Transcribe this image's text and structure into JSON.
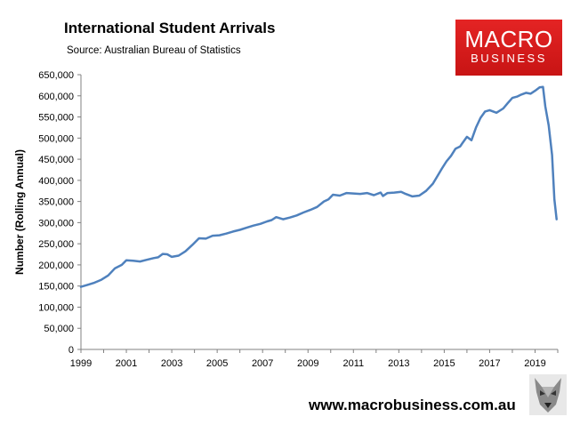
{
  "header": {
    "title": "International Student Arrivals",
    "subtitle": "Source: Australian Bureau of Statistics"
  },
  "logo": {
    "top": "MACRO",
    "bottom": "BUSINESS",
    "color": "#d11a1a"
  },
  "footer": {
    "url": "www.macrobusiness.com.au"
  },
  "chart_data": {
    "type": "line",
    "ylabel": "Number (Rolling Annual)",
    "xlabel": "",
    "xlim": [
      1999,
      2020
    ],
    "ylim": [
      0,
      650000
    ],
    "yticks": [
      0,
      50000,
      100000,
      150000,
      200000,
      250000,
      300000,
      350000,
      400000,
      450000,
      500000,
      550000,
      600000,
      650000
    ],
    "ytick_labels": [
      "0",
      "50,000",
      "100,000",
      "150,000",
      "200,000",
      "250,000",
      "300,000",
      "350,000",
      "400,000",
      "450,000",
      "500,000",
      "550,000",
      "600,000",
      "650,000"
    ],
    "xticks": [
      1999,
      2001,
      2003,
      2005,
      2007,
      2009,
      2011,
      2013,
      2015,
      2017,
      2019
    ],
    "xtick_labels": [
      "1999",
      "2001",
      "2003",
      "2005",
      "2007",
      "2009",
      "2011",
      "2013",
      "2015",
      "2017",
      "2019"
    ],
    "grid": false,
    "line_color": "#4f81bd",
    "series": [
      {
        "x": [
          1999.0,
          1999.3,
          1999.6,
          1999.9,
          2000.2,
          2000.5,
          2000.8,
          2001.0,
          2001.3,
          2001.6,
          2001.9,
          2002.2,
          2002.4,
          2002.6,
          2002.8,
          2003.0,
          2003.3,
          2003.6,
          2003.9,
          2004.2,
          2004.5,
          2004.8,
          2005.1,
          2005.4,
          2005.7,
          2006.0,
          2006.3,
          2006.6,
          2006.9,
          2007.2,
          2007.4,
          2007.6,
          2007.9,
          2008.2,
          2008.5,
          2008.8,
          2009.1,
          2009.4,
          2009.7,
          2009.9,
          2010.1,
          2010.4,
          2010.7,
          2011.0,
          2011.3,
          2011.6,
          2011.9,
          2012.2,
          2012.3,
          2012.5,
          2012.8,
          2013.1,
          2013.3,
          2013.6,
          2013.9,
          2014.2,
          2014.5,
          2014.7,
          2014.9,
          2015.1,
          2015.3,
          2015.5,
          2015.7,
          2015.8,
          2016.0,
          2016.2,
          2016.4,
          2016.6,
          2016.8,
          2017.0,
          2017.3,
          2017.6,
          2017.8,
          2018.0,
          2018.2,
          2018.4,
          2018.6,
          2018.8,
          2019.0,
          2019.2,
          2019.35,
          2019.45,
          2019.6,
          2019.75,
          2019.85,
          2019.95
        ],
        "y": [
          148000,
          153000,
          158000,
          165000,
          175000,
          192000,
          200000,
          211000,
          210000,
          208000,
          212000,
          216000,
          218000,
          226000,
          225000,
          219000,
          222000,
          232000,
          247000,
          263000,
          262000,
          269000,
          270000,
          274000,
          279000,
          283000,
          288000,
          293000,
          297000,
          303000,
          306000,
          313000,
          308000,
          312000,
          317000,
          324000,
          330000,
          337000,
          350000,
          355000,
          366000,
          364000,
          370000,
          369000,
          368000,
          370000,
          365000,
          371000,
          363000,
          370000,
          371000,
          373000,
          368000,
          362000,
          364000,
          375000,
          392000,
          410000,
          428000,
          445000,
          458000,
          475000,
          480000,
          488000,
          503000,
          495000,
          525000,
          548000,
          563000,
          566000,
          560000,
          570000,
          583000,
          595000,
          598000,
          603000,
          607000,
          605000,
          612000,
          620000,
          621000,
          575000,
          530000,
          460000,
          355000,
          308000
        ]
      }
    ]
  }
}
